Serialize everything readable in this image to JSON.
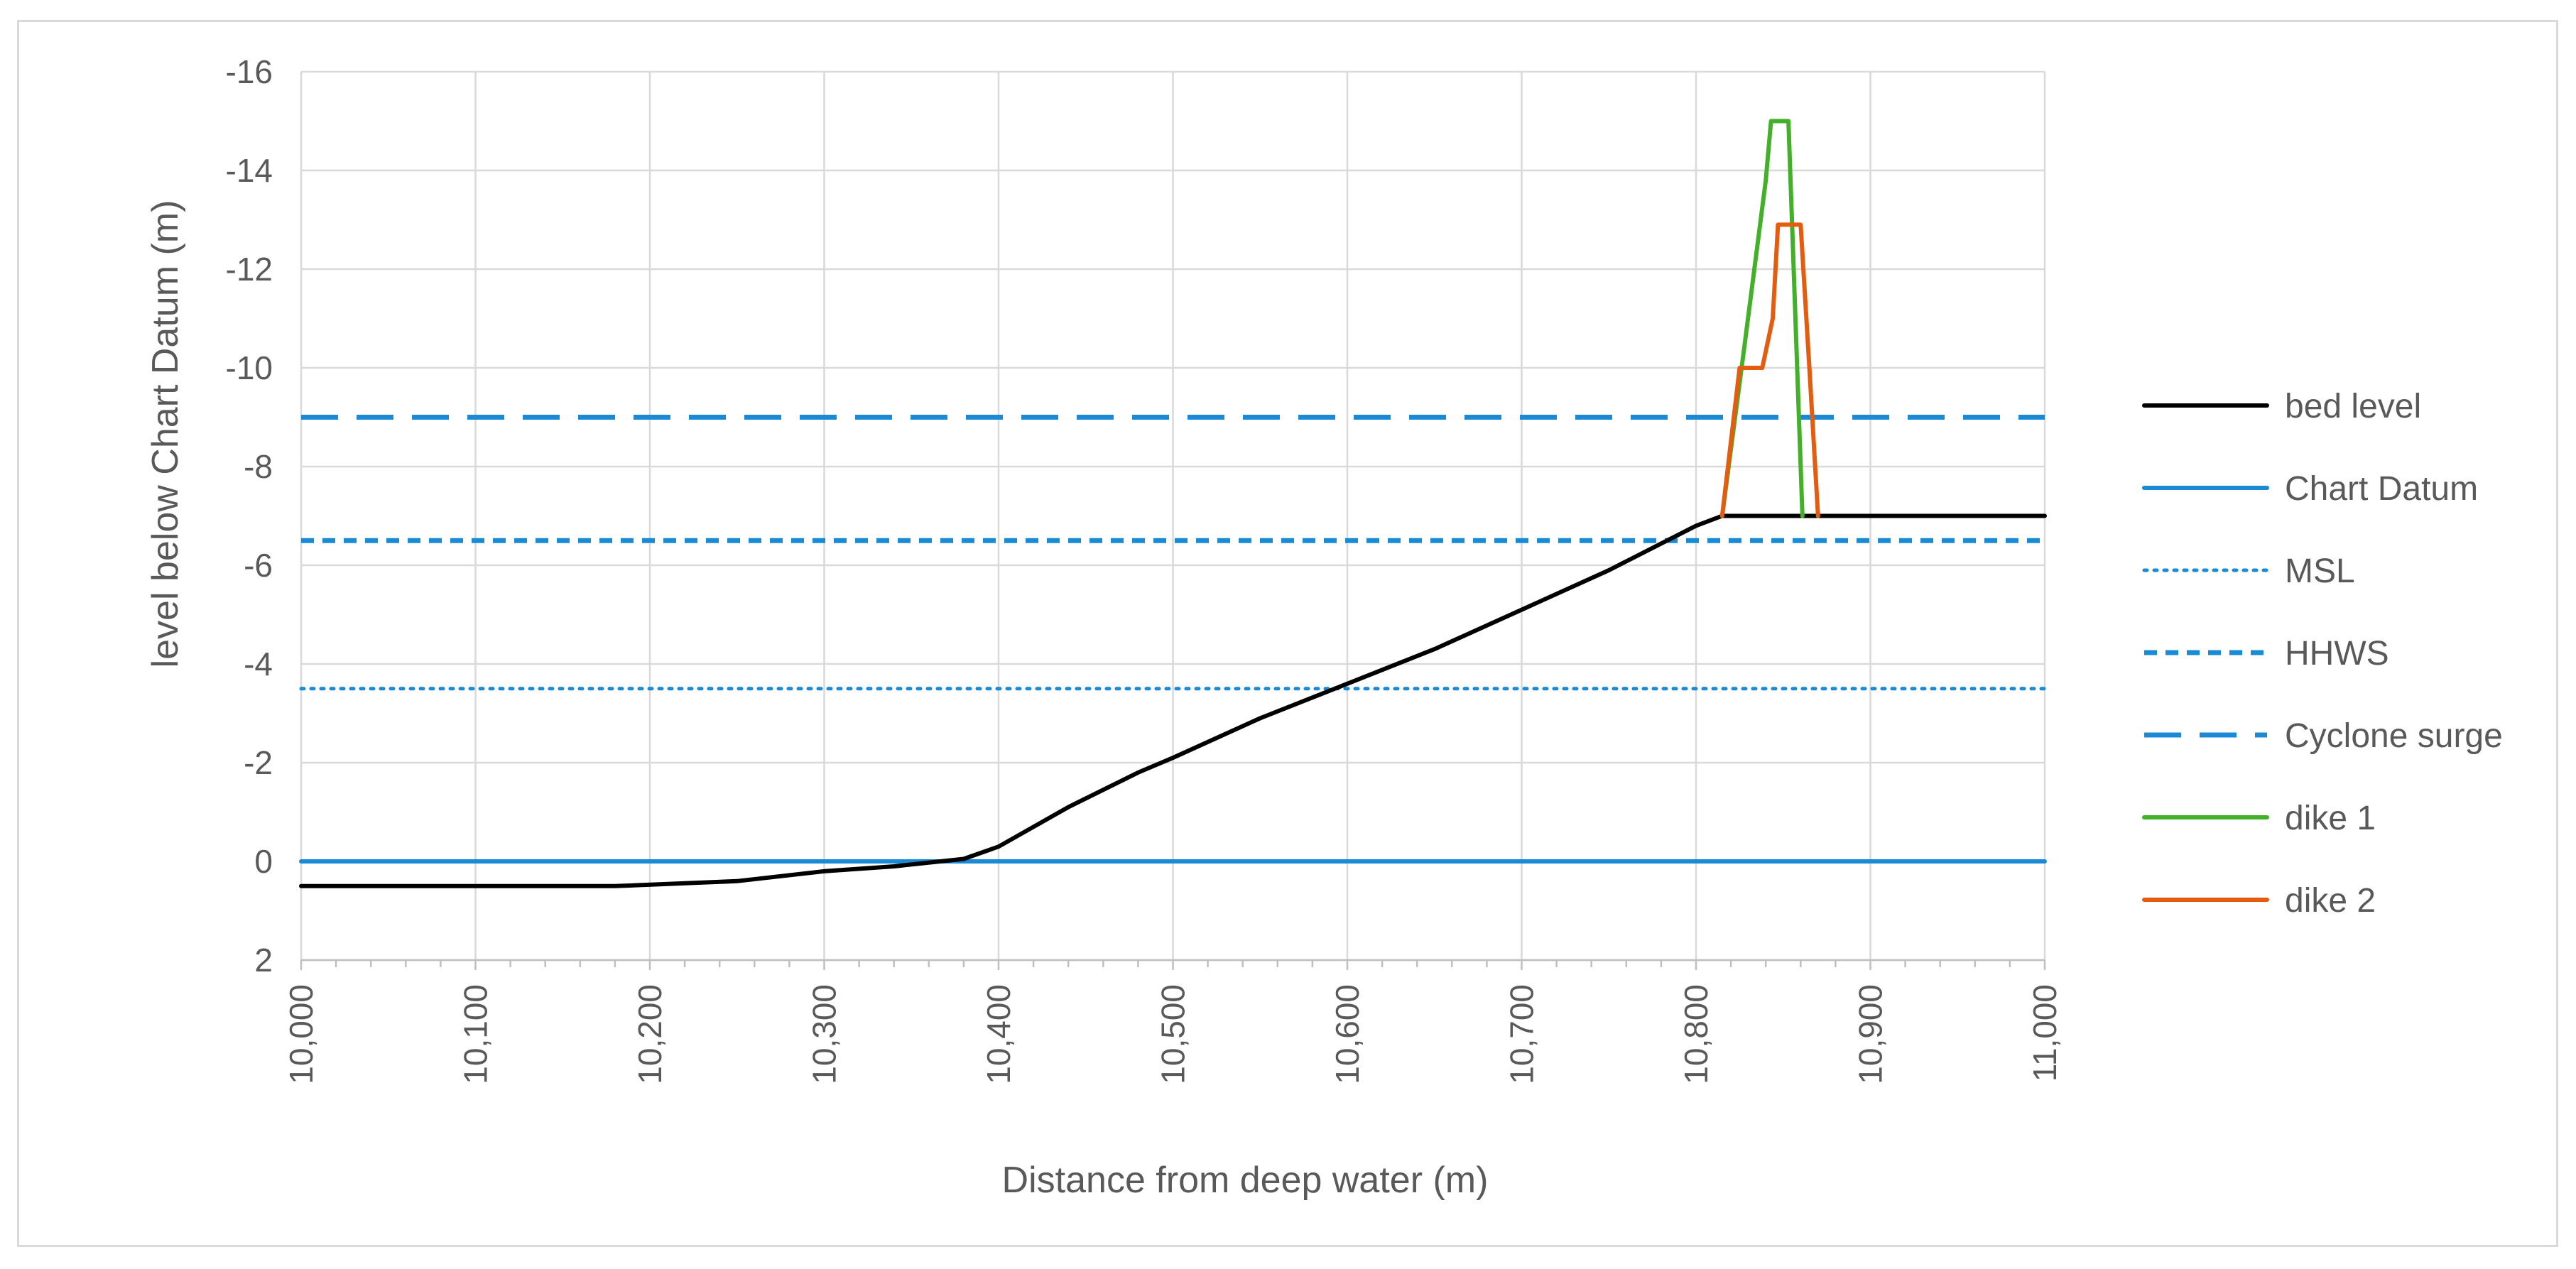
{
  "chart_data": {
    "type": "line",
    "title": "",
    "xlabel": "Distance from deep water (m)",
    "ylabel": "level below Chart Datum (m)",
    "xlim": [
      10000,
      11000
    ],
    "ylim": [
      2,
      -16
    ],
    "x_ticks": [
      10000,
      10100,
      10200,
      10300,
      10400,
      10500,
      10600,
      10700,
      10800,
      10900,
      11000
    ],
    "x_tick_labels": [
      "10,000",
      "10,100",
      "10,200",
      "10,300",
      "10,400",
      "10,500",
      "10,600",
      "10,700",
      "10,800",
      "10,900",
      "11,000"
    ],
    "y_ticks": [
      -16,
      -14,
      -12,
      -10,
      -8,
      -6,
      -4,
      -2,
      0,
      2
    ],
    "y_tick_labels": [
      "-16",
      "-14",
      "-12",
      "-10",
      "-8",
      "-6",
      "-4",
      "-2",
      "0",
      "2"
    ],
    "grid": true,
    "legend_position": "right",
    "series": [
      {
        "name": "bed level",
        "color": "#000000",
        "dash": "solid",
        "x": [
          10000,
          10180,
          10250,
          10300,
          10340,
          10380,
          10400,
          10440,
          10480,
          10500,
          10550,
          10600,
          10650,
          10700,
          10750,
          10800,
          10815,
          11000
        ],
        "y": [
          0.5,
          0.5,
          0.4,
          0.2,
          0.1,
          -0.05,
          -0.3,
          -1.1,
          -1.8,
          -2.1,
          -2.9,
          -3.6,
          -4.3,
          -5.1,
          -5.9,
          -6.8,
          -7,
          -7
        ]
      },
      {
        "name": "Chart Datum",
        "color": "#1a8ad4",
        "dash": "solid",
        "x": [
          10000,
          11000
        ],
        "y": [
          0,
          0
        ]
      },
      {
        "name": "MSL",
        "color": "#1a8ad4",
        "dash": "dotted",
        "x": [
          10000,
          11000
        ],
        "y": [
          -3.5,
          -3.5
        ]
      },
      {
        "name": "HHWS",
        "color": "#1a8ad4",
        "dash": "dashed",
        "x": [
          10000,
          11000
        ],
        "y": [
          -6.5,
          -6.5
        ]
      },
      {
        "name": "Cyclone surge",
        "color": "#1a8ad4",
        "dash": "longdash",
        "x": [
          10000,
          11000
        ],
        "y": [
          -9,
          -9
        ]
      },
      {
        "name": "dike 1",
        "color": "#43b02a",
        "dash": "solid",
        "x": [
          10815,
          10828,
          10840,
          10843,
          10850,
          10853,
          10861
        ],
        "y": [
          -7,
          -10.5,
          -13.8,
          -15,
          -15,
          -15,
          -7
        ]
      },
      {
        "name": "dike 2",
        "color": "#e35d10",
        "dash": "solid",
        "x": [
          10815,
          10825,
          10832,
          10838,
          10844,
          10847,
          10850,
          10857,
          10860,
          10865,
          10870
        ],
        "y": [
          -7,
          -10,
          -10,
          -10,
          -11,
          -12.9,
          -12.9,
          -12.9,
          -12.9,
          -10,
          -7
        ]
      }
    ]
  }
}
